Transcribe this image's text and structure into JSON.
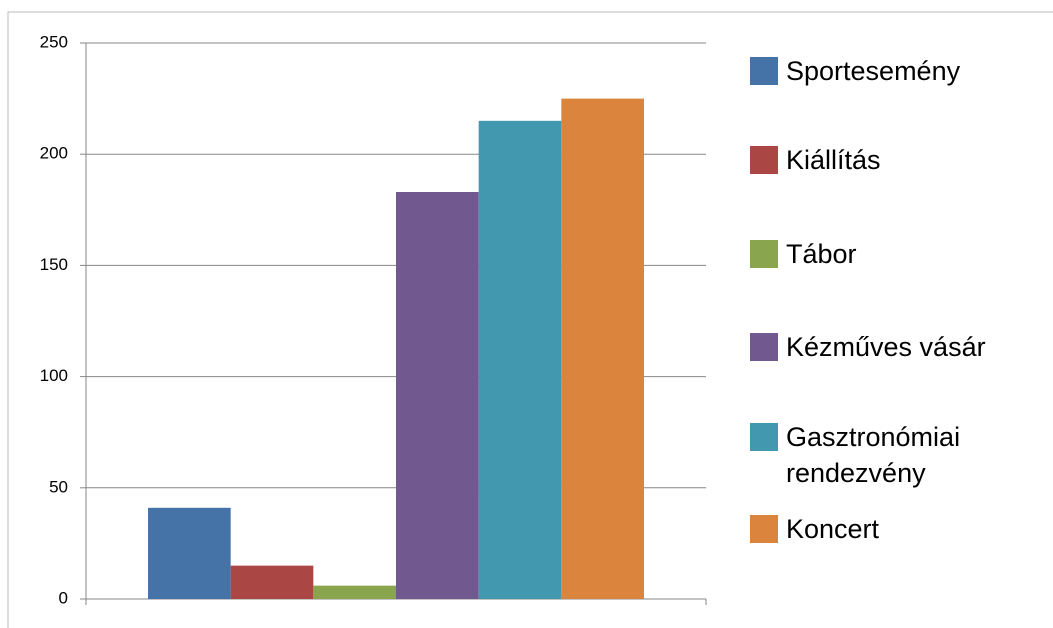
{
  "chart_data": {
    "type": "bar",
    "categories": [
      null
    ],
    "series": [
      {
        "name": "Sportesemény",
        "color": "#4572a7",
        "values": [
          41
        ]
      },
      {
        "name": "Kiállítás",
        "color": "#aa4643",
        "values": [
          15
        ]
      },
      {
        "name": "Tábor",
        "color": "#89a54e",
        "values": [
          6
        ]
      },
      {
        "name": "Kézműves vásár",
        "color": "#71588f",
        "values": [
          183
        ]
      },
      {
        "name": "Gasztronómiai rendezvény",
        "color": "#4198af",
        "values": [
          215
        ]
      },
      {
        "name": "Koncert",
        "color": "#db843d",
        "values": [
          225
        ]
      }
    ],
    "ylim": [
      0,
      250
    ],
    "yticks": [
      0,
      50,
      100,
      150,
      200,
      250
    ],
    "grid": true,
    "legend": "right"
  }
}
